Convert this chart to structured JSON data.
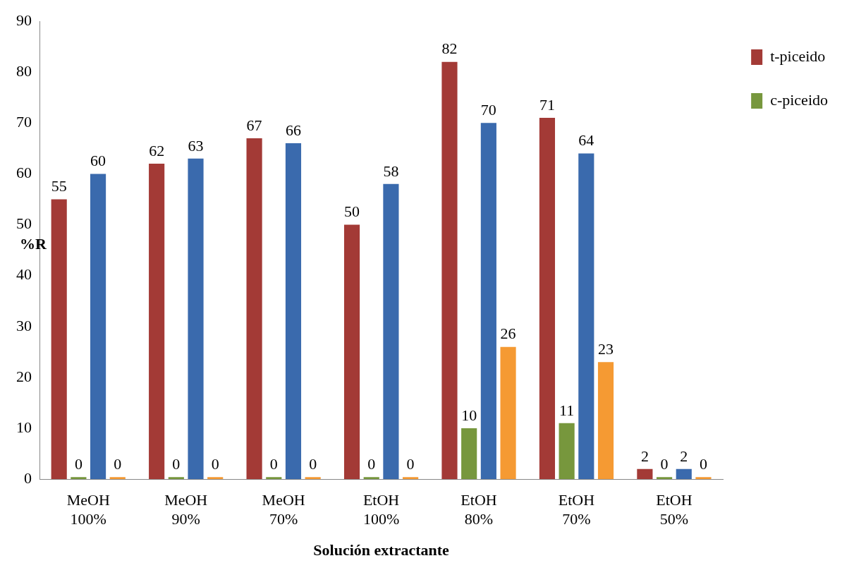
{
  "chart_data": {
    "type": "bar",
    "xlabel": "Solución extractante",
    "ylabel": "%R",
    "categories": [
      "MeOH 100%",
      "MeOH 90%",
      "MeOH 70%",
      "EtOH 100%",
      "EtOH 80%",
      "EtOH 70%",
      "EtOH 50%"
    ],
    "series": [
      {
        "name": "t-piceido",
        "color": "#a33a36",
        "values": [
          55,
          62,
          67,
          50,
          82,
          71,
          2
        ]
      },
      {
        "name": "c-piceido",
        "color": "#77973d",
        "values": [
          0,
          0,
          0,
          0,
          10,
          11,
          0
        ]
      },
      {
        "color": "#3a6aad",
        "values": [
          60,
          63,
          66,
          58,
          70,
          64,
          2
        ]
      },
      {
        "color": "#f59a33",
        "values": [
          0,
          0,
          0,
          0,
          26,
          23,
          0
        ]
      }
    ],
    "ylim": [
      0,
      90
    ],
    "yticks": [
      0,
      10,
      20,
      30,
      40,
      50,
      60,
      70,
      80,
      90
    ],
    "grid": false,
    "legend": "top right",
    "data_labels": true
  }
}
